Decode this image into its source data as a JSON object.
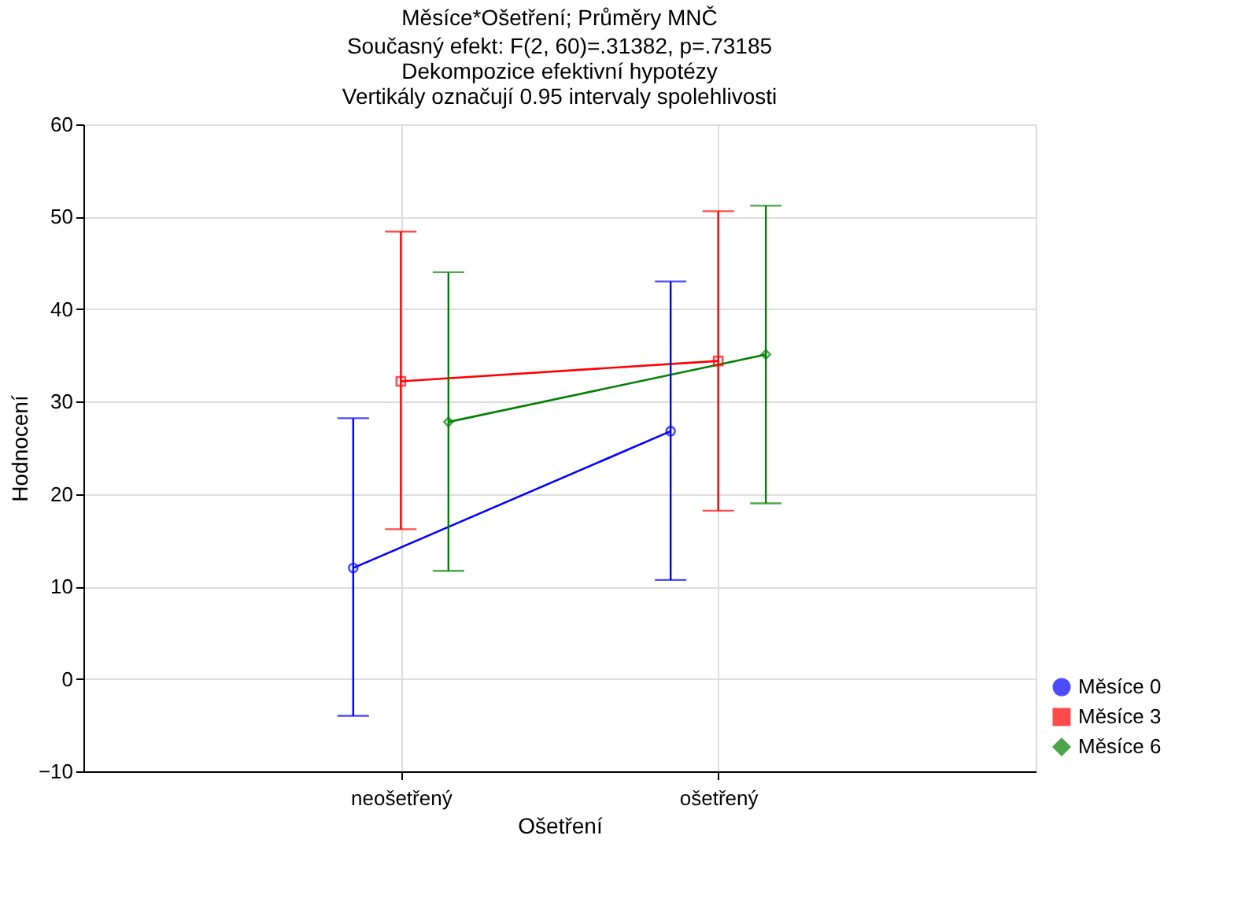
{
  "chart_data": {
    "type": "line",
    "title": "Měsíce*Ošetření; Průměry MNČ",
    "subtitle": "Současný efekt: F(2, 60)=.31382, p=.73185\nDekompozice efektivní hypotézy\nVertikály označují 0.95 intervaly spolehlivosti",
    "xlabel": "Ošetření",
    "ylabel": "Hodnocení",
    "categories": [
      "neošetřený",
      "ošetřený"
    ],
    "series": [
      {
        "name": "Měsíce 0",
        "color": "#0000ff",
        "marker": "circle",
        "values": [
          12,
          26.8
        ],
        "errors": [
          [
            -4,
            28.2
          ],
          [
            10.7,
            43
          ]
        ]
      },
      {
        "name": "Měsíce 3",
        "color": "#ff0000",
        "marker": "square",
        "values": [
          32.2,
          34.4
        ],
        "errors": [
          [
            16.2,
            48.4
          ],
          [
            18.2,
            50.6
          ]
        ]
      },
      {
        "name": "Měsíce 6",
        "color": "#008000",
        "marker": "diamond",
        "values": [
          27.8,
          35.1
        ],
        "errors": [
          [
            11.7,
            44
          ],
          [
            19,
            51.2
          ]
        ]
      }
    ],
    "ylim": [
      -10,
      60
    ],
    "yticks": [
      -10,
      0,
      10,
      20,
      30,
      40,
      50,
      60
    ],
    "grid": true,
    "legend": "bottom right"
  }
}
